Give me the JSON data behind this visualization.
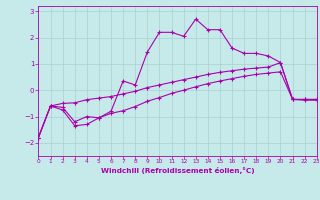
{
  "xlabel": "Windchill (Refroidissement éolien,°C)",
  "background_color": "#c6eaea",
  "grid_color": "#a8d0d0",
  "line_color": "#aa00aa",
  "xlim": [
    0,
    23
  ],
  "ylim": [
    -2.5,
    3.2
  ],
  "xticks": [
    0,
    1,
    2,
    3,
    4,
    5,
    6,
    7,
    8,
    9,
    10,
    11,
    12,
    13,
    14,
    15,
    16,
    17,
    18,
    19,
    20,
    21,
    22,
    23
  ],
  "yticks": [
    -2,
    -1,
    0,
    1,
    2,
    3
  ],
  "line1_x": [
    0,
    1,
    2,
    3,
    4,
    5,
    6,
    7,
    8,
    9,
    10,
    11,
    12,
    13,
    14,
    15,
    16,
    17,
    18,
    19,
    20,
    21,
    22,
    23
  ],
  "line1_y": [
    -1.8,
    -0.6,
    -0.65,
    -1.2,
    -1.0,
    -1.05,
    -0.8,
    0.35,
    0.2,
    1.45,
    2.2,
    2.2,
    2.05,
    2.7,
    2.3,
    2.3,
    1.6,
    1.4,
    1.4,
    1.3,
    1.05,
    -0.35,
    -0.38,
    -0.38
  ],
  "line2_x": [
    0,
    1,
    2,
    3,
    4,
    5,
    6,
    7,
    8,
    9,
    10,
    11,
    12,
    13,
    14,
    15,
    16,
    17,
    18,
    19,
    20,
    21,
    22,
    23
  ],
  "line2_y": [
    -1.8,
    -0.6,
    -0.75,
    -1.35,
    -1.3,
    -1.05,
    -0.88,
    -0.78,
    -0.62,
    -0.42,
    -0.28,
    -0.12,
    0.0,
    0.13,
    0.25,
    0.35,
    0.44,
    0.53,
    0.6,
    0.65,
    0.7,
    -0.35,
    -0.35,
    -0.35
  ],
  "line3_x": [
    0,
    1,
    2,
    3,
    4,
    5,
    6,
    7,
    8,
    9,
    10,
    11,
    12,
    13,
    14,
    15,
    16,
    17,
    18,
    19,
    20,
    21,
    22,
    23
  ],
  "line3_y": [
    -1.8,
    -0.6,
    -0.5,
    -0.48,
    -0.36,
    -0.3,
    -0.24,
    -0.14,
    -0.04,
    0.1,
    0.2,
    0.3,
    0.4,
    0.5,
    0.6,
    0.68,
    0.74,
    0.8,
    0.84,
    0.88,
    1.05,
    -0.35,
    -0.35,
    -0.35
  ]
}
